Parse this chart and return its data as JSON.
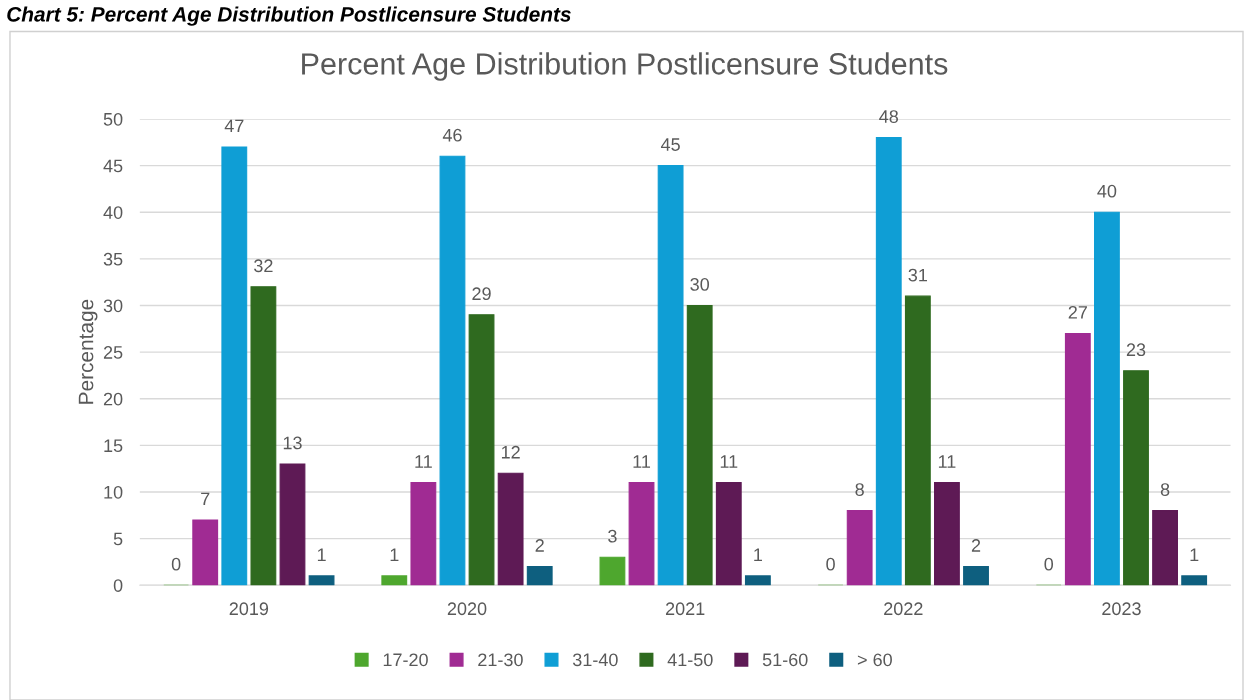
{
  "chart_data": {
    "type": "bar",
    "title": "Percent Age Distribution Postlicensure Students",
    "ylabel": "Percentage",
    "annotations": [
      "Chart 5: Percent Age Distribution Postlicensure Students"
    ],
    "categories": [
      "2019",
      "2020",
      "2021",
      "2022",
      "2023"
    ],
    "series": [
      {
        "name": "17-20",
        "color": "#4ea72e",
        "values": [
          0,
          1,
          3,
          0,
          0
        ]
      },
      {
        "name": "21-30",
        "color": "#a02b93",
        "values": [
          7,
          11,
          11,
          8,
          27
        ]
      },
      {
        "name": "31-40",
        "color": "#0f9ed5",
        "values": [
          47,
          46,
          45,
          48,
          40
        ]
      },
      {
        "name": "41-50",
        "color": "#2f6a1f",
        "values": [
          32,
          29,
          30,
          31,
          23
        ]
      },
      {
        "name": "51-60",
        "color": "#5e1a55",
        "values": [
          13,
          12,
          11,
          11,
          8
        ]
      },
      {
        "name": "> 60",
        "color": "#0e5f7f",
        "values": [
          1,
          2,
          1,
          2,
          1
        ]
      }
    ],
    "ylim": [
      0,
      50
    ],
    "yticks": [
      0,
      5,
      10,
      15,
      20,
      25,
      30,
      35,
      40,
      45,
      50
    ],
    "grid": "y",
    "legend": "bottom",
    "data_labels": true
  }
}
